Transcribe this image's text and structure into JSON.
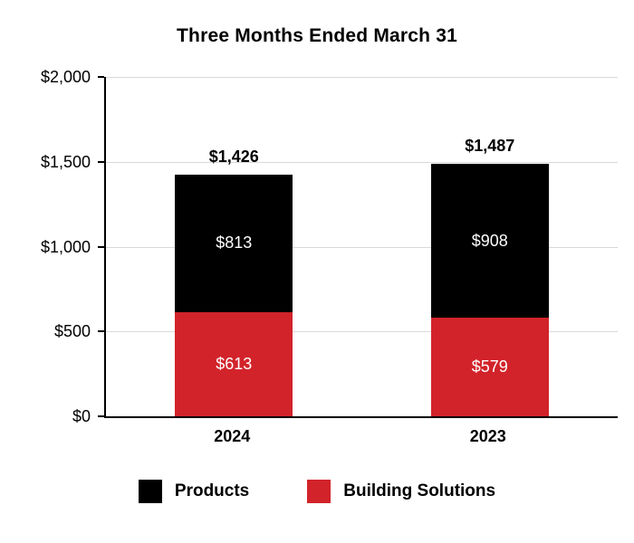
{
  "chart_data": {
    "type": "bar",
    "stacked": true,
    "title": "Three Months Ended March 31",
    "categories": [
      "2024",
      "2023"
    ],
    "series": [
      {
        "name": "Building Solutions",
        "color": "#D2232A",
        "values": [
          613,
          579
        ],
        "labels": [
          "$613",
          "$579"
        ]
      },
      {
        "name": "Products",
        "color": "#000000",
        "values": [
          813,
          908
        ],
        "labels": [
          "$813",
          "$908"
        ]
      }
    ],
    "totals": [
      1426,
      1487
    ],
    "total_labels": [
      "$1,426",
      "$1,487"
    ],
    "ylim": [
      0,
      2000
    ],
    "y_tick_values": [
      0,
      500,
      1000,
      1500,
      2000
    ],
    "y_tick_labels": [
      "$0",
      "$500",
      "$1,000",
      "$1,500",
      "$2,000"
    ],
    "grid": true,
    "grid_color": "#d9d9d9",
    "axis_color": "#000000",
    "inside_label_color": "#ffffff",
    "legend_position": "bottom",
    "legend": [
      {
        "label": "Products",
        "color": "#000000"
      },
      {
        "label": "Building Solutions",
        "color": "#D2232A"
      }
    ],
    "bar_centers": [
      0.25,
      0.75
    ]
  }
}
